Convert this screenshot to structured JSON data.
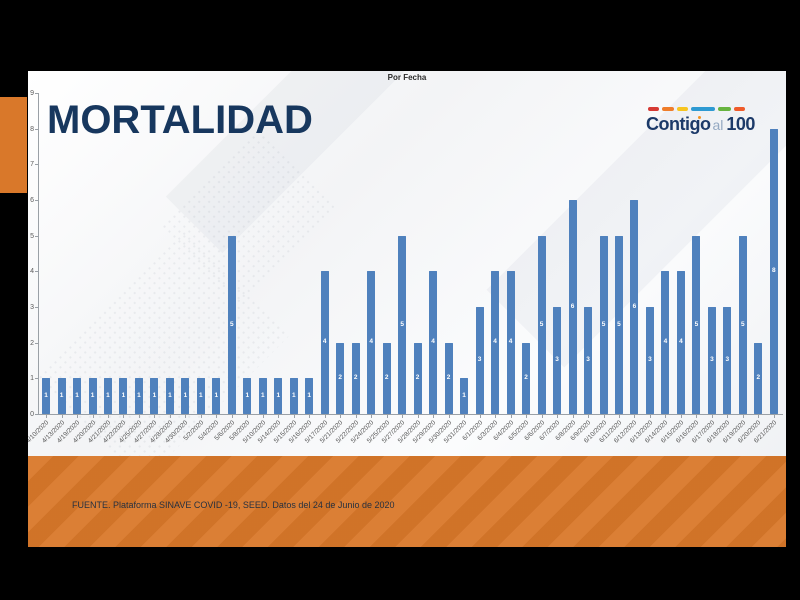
{
  "slide": {
    "main_title": "MORTALIDAD",
    "footer_source": "FUENTE. Plataforma SINAVE COVID -19, SEED. Datos del 24 de Junio de 2020"
  },
  "logo": {
    "text_contigo": "Contigo",
    "text_al": "al",
    "text_100": "100",
    "dash_colors": [
      "#d63a34",
      "#ef7d2a",
      "#f7c520",
      "#2e9ad2",
      "#67b43f",
      "#ef5b2a"
    ],
    "dash_widths": [
      11,
      12,
      11,
      24,
      13,
      11
    ]
  },
  "colors": {
    "bar": "#4f81bd",
    "title_navy": "#17375e",
    "accent_orange": "#d9782a",
    "axis_text": "#595959",
    "letterbox": "#000000"
  },
  "chart_data": {
    "type": "bar",
    "title": "Por Fecha",
    "xlabel": "",
    "ylabel": "",
    "ylim": [
      0,
      9
    ],
    "yticks": [
      0,
      1,
      2,
      3,
      4,
      5,
      6,
      7,
      8,
      9
    ],
    "grid": false,
    "legend": "none",
    "bar_color": "#4f81bd",
    "data_label_style": "white, bold, centered inside bar",
    "categories": [
      "4/10/2020",
      "4/13/2020",
      "4/19/2020",
      "4/20/2020",
      "4/21/2020",
      "4/22/2020",
      "4/25/2020",
      "4/27/2020",
      "4/28/2020",
      "4/30/2020",
      "5/2/2020",
      "5/4/2020",
      "5/6/2020",
      "5/8/2020",
      "5/10/2020",
      "5/14/2020",
      "5/15/2020",
      "5/16/2020",
      "5/17/2020",
      "5/21/2020",
      "5/22/2020",
      "5/24/2020",
      "5/25/2020",
      "5/27/2020",
      "5/28/2020",
      "5/29/2020",
      "5/30/2020",
      "5/31/2020",
      "6/1/2020",
      "6/3/2020",
      "6/4/2020",
      "6/5/2020",
      "6/6/2020",
      "6/7/2020",
      "6/8/2020",
      "6/9/2020",
      "6/10/2020",
      "6/11/2020",
      "6/12/2020",
      "6/13/2020",
      "6/14/2020",
      "6/15/2020",
      "6/16/2020",
      "6/17/2020",
      "6/18/2020",
      "6/19/2020",
      "6/20/2020",
      "6/21/2020"
    ],
    "values": [
      1,
      1,
      1,
      1,
      1,
      1,
      1,
      1,
      1,
      1,
      1,
      1,
      5,
      1,
      1,
      1,
      1,
      1,
      4,
      2,
      2,
      4,
      2,
      5,
      2,
      4,
      2,
      1,
      3,
      4,
      4,
      2,
      5,
      3,
      6,
      3,
      5,
      5,
      6,
      3,
      4,
      4,
      5,
      3,
      3,
      5,
      2,
      8
    ]
  }
}
